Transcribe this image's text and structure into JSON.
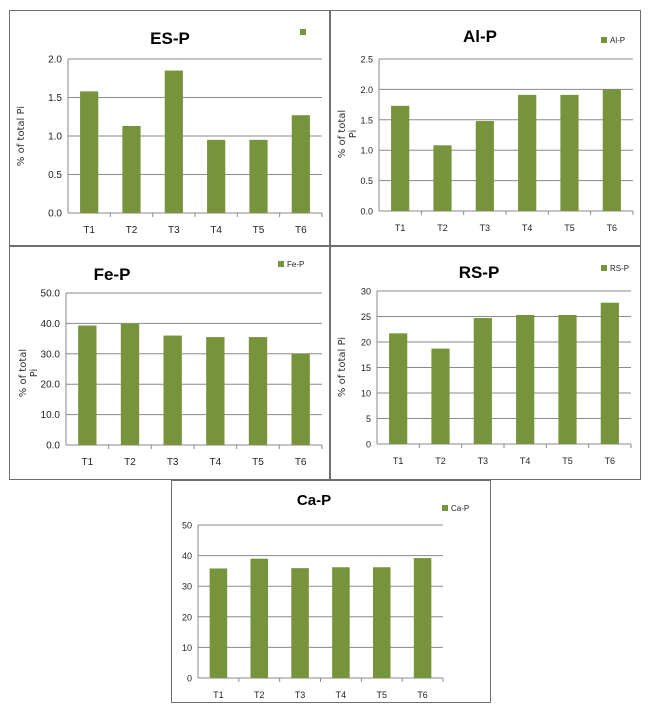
{
  "colors": {
    "bar": "#77933c",
    "grid": "#8a8a8a",
    "axis": "#8a8a8a",
    "border": "#6f6f6f"
  },
  "chart_data": [
    {
      "id": "esp",
      "type": "bar",
      "title": "ES-P",
      "legend": "",
      "ylabel": "% of total Pi",
      "categories": [
        "T1",
        "T2",
        "T3",
        "T4",
        "T5",
        "T6"
      ],
      "values": [
        1.58,
        1.13,
        1.85,
        0.95,
        0.95,
        1.27
      ],
      "ylim": [
        0,
        2.0
      ],
      "step": 0.5,
      "decimals": 1,
      "yticks": [
        "0.0",
        "0.5",
        "1.0",
        "1.5",
        "2.0"
      ],
      "grid": true,
      "legend_position": "top-right"
    },
    {
      "id": "alp",
      "type": "bar",
      "title": "Al-P",
      "legend": "Al-P",
      "ylabel": "% of total\nPi",
      "categories": [
        "T1",
        "T2",
        "T3",
        "T4",
        "T5",
        "T6"
      ],
      "values": [
        1.73,
        1.08,
        1.48,
        1.91,
        1.91,
        2.0
      ],
      "ylim": [
        0,
        2.5
      ],
      "step": 0.5,
      "decimals": 1,
      "yticks": [
        "0.0",
        "0.5",
        "1.0",
        "1.5",
        "2.0",
        "2.5"
      ],
      "grid": true,
      "legend_position": "top-right"
    },
    {
      "id": "fep",
      "type": "bar",
      "title": "Fe-P",
      "legend": "Fe-P",
      "ylabel": "% of total\nPi",
      "categories": [
        "T1",
        "T2",
        "T3",
        "T4",
        "T5",
        "T6"
      ],
      "values": [
        39.3,
        39.9,
        36.0,
        35.5,
        35.5,
        30.0
      ],
      "ylim": [
        0,
        50
      ],
      "step": 10,
      "decimals": 1,
      "yticks": [
        "0.0",
        "10.0",
        "20.0",
        "30.0",
        "40.0",
        "50.0"
      ],
      "grid": true,
      "legend_position": "top-right"
    },
    {
      "id": "rsp",
      "type": "bar",
      "title": "RS-P",
      "legend": "RS-P",
      "ylabel": "% of total Pi",
      "categories": [
        "T1",
        "T2",
        "T3",
        "T4",
        "T5",
        "T6"
      ],
      "values": [
        21.7,
        18.7,
        24.7,
        25.3,
        25.3,
        27.7
      ],
      "ylim": [
        0,
        30
      ],
      "step": 5,
      "decimals": 0,
      "yticks": [
        "0",
        "5",
        "10",
        "15",
        "20",
        "25",
        "30"
      ],
      "grid": true,
      "legend_position": "top-right"
    },
    {
      "id": "cap",
      "type": "bar",
      "title": "Ca-P",
      "legend": "Ca-P",
      "ylabel": "",
      "categories": [
        "T1",
        "T2",
        "T3",
        "T4",
        "T5",
        "T6"
      ],
      "values": [
        35.8,
        39.0,
        35.9,
        36.2,
        36.2,
        39.2
      ],
      "ylim": [
        0,
        50
      ],
      "step": 10,
      "decimals": 0,
      "yticks": [
        "0",
        "10",
        "20",
        "30",
        "40",
        "50"
      ],
      "grid": true,
      "legend_position": "top-right"
    }
  ]
}
